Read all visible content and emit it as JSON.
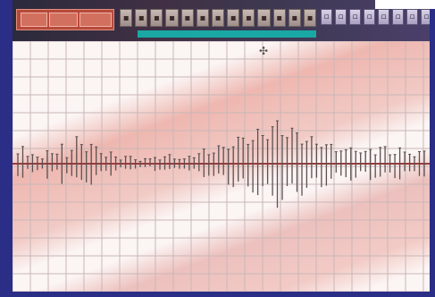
{
  "toolbar": {
    "left_panel": "readout-panel",
    "tools": [
      "i-1",
      "i-2",
      "i-3",
      "i-4",
      "i-5",
      "i-6",
      "i-7",
      "i-8",
      "i-9",
      "i-10",
      "i-11",
      "i-12",
      "i-13"
    ],
    "tools_right": [
      "r-1",
      "r-2",
      "r-3",
      "r-4",
      "r-5",
      "r-6",
      "r-7",
      "r-8"
    ]
  },
  "graph": {
    "grid": true,
    "baseline_color": "#9b3b3b",
    "trace_color": "#5b5050",
    "trace_amplitudes": [
      0.25,
      0.35,
      0.2,
      0.3,
      0.15,
      0.1,
      0.4,
      0.3,
      0.2,
      0.45,
      0.2,
      0.35,
      0.55,
      0.5,
      0.4,
      0.45,
      0.35,
      0.3,
      0.2,
      0.25,
      0.15,
      0.12,
      0.2,
      0.15,
      0.1,
      0.08,
      0.12,
      0.1,
      0.18,
      0.12,
      0.15,
      0.2,
      0.15,
      0.12,
      0.1,
      0.18,
      0.2,
      0.25,
      0.3,
      0.25,
      0.35,
      0.4,
      0.35,
      0.45,
      0.5,
      0.55,
      0.6,
      0.65,
      0.6,
      0.7,
      0.75,
      0.8,
      0.85,
      0.9,
      0.85,
      0.8,
      0.75,
      0.7,
      0.65,
      0.6,
      0.55,
      0.5,
      0.55,
      0.45,
      0.4,
      0.35,
      0.4,
      0.3,
      0.35,
      0.4,
      0.3,
      0.25,
      0.35,
      0.3,
      0.4,
      0.35,
      0.25,
      0.3,
      0.35,
      0.25,
      0.3,
      0.2,
      0.25,
      0.3
    ]
  }
}
